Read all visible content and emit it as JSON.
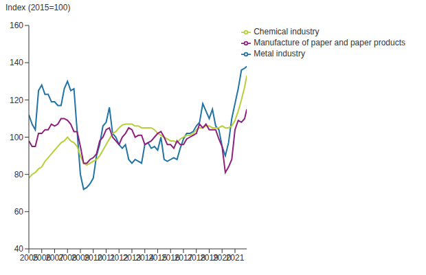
{
  "chart_data": {
    "type": "line",
    "ylabel": "Index (2015=100)",
    "x": [
      2005,
      2005.25,
      2005.5,
      2005.75,
      2006,
      2006.25,
      2006.5,
      2006.75,
      2007,
      2007.25,
      2007.5,
      2007.75,
      2008,
      2008.25,
      2008.5,
      2008.75,
      2009,
      2009.25,
      2009.5,
      2009.75,
      2010,
      2010.25,
      2010.5,
      2010.75,
      2011,
      2011.25,
      2011.5,
      2011.75,
      2012,
      2012.25,
      2012.5,
      2012.75,
      2013,
      2013.25,
      2013.5,
      2013.75,
      2014,
      2014.25,
      2014.5,
      2014.75,
      2015,
      2015.25,
      2015.5,
      2015.75,
      2016,
      2016.25,
      2016.5,
      2016.75,
      2017,
      2017.25,
      2017.5,
      2017.75,
      2018,
      2018.25,
      2018.5,
      2018.75,
      2019,
      2019.25,
      2019.5,
      2019.75,
      2020,
      2020.25,
      2020.5,
      2020.75,
      2021,
      2021.25,
      2021.5,
      2021.75,
      2021.917
    ],
    "series": [
      {
        "name": "Metal industry",
        "color": "#1f73a6",
        "values": [
          112,
          107,
          104,
          125,
          128,
          123,
          123,
          119,
          119,
          117,
          117,
          126,
          130,
          125,
          126,
          103,
          80,
          72,
          73,
          75,
          78,
          90,
          96,
          106,
          108,
          116,
          102,
          100,
          96,
          94,
          96,
          88,
          86,
          88,
          87,
          86,
          96,
          97,
          94,
          95,
          93,
          100,
          88,
          87,
          88,
          89,
          88,
          94,
          99,
          102,
          102,
          103,
          106,
          108,
          118,
          114,
          110,
          115,
          106,
          104,
          95,
          90,
          97,
          110,
          118,
          126,
          136,
          137,
          138
        ]
      },
      {
        "name": "Chemical industry",
        "color": "#b5d038",
        "values": [
          78,
          80,
          81,
          83,
          84,
          87,
          89,
          91,
          93,
          95,
          97,
          98,
          100,
          98,
          97,
          95,
          90,
          86,
          85,
          86,
          87,
          88,
          90,
          93,
          96,
          99,
          102,
          103,
          105,
          106.5,
          107,
          107,
          107,
          106,
          106,
          105,
          105,
          105,
          105,
          104,
          102,
          101,
          100,
          99,
          98,
          98,
          97,
          99,
          100,
          101,
          101,
          102,
          104,
          105,
          105,
          106,
          106,
          105,
          105,
          105,
          106,
          105,
          105,
          106,
          109,
          114,
          120,
          127,
          133
        ]
      },
      {
        "name": "Manufacture of paper and paper products",
        "color": "#8e1f7c",
        "values": [
          98,
          95,
          95,
          102,
          102,
          104,
          104,
          107,
          106,
          107,
          110,
          110,
          109,
          107,
          103,
          103,
          95,
          86,
          86,
          88,
          89,
          91,
          98,
          100,
          104,
          105,
          100,
          98,
          96,
          100,
          102,
          105,
          104,
          100,
          101,
          101,
          96,
          97,
          98,
          100,
          102,
          103,
          100,
          96,
          96,
          94,
          98,
          96,
          96,
          99,
          100,
          101,
          102,
          107,
          105,
          107,
          104,
          104,
          104,
          99,
          95,
          81,
          84,
          88,
          104,
          109,
          108,
          110,
          115
        ]
      }
    ],
    "xlim": [
      2005,
      2021.917
    ],
    "xticks": [
      2005,
      2006,
      2007,
      2008,
      2009,
      2010,
      2011,
      2012,
      2013,
      2014,
      2015,
      2016,
      2017,
      2018,
      2019,
      2020,
      2021
    ],
    "ylim": [
      40,
      160
    ],
    "yticks": [
      40,
      60,
      80,
      100,
      120,
      140,
      160
    ],
    "grid": false,
    "legend": "upper right"
  }
}
